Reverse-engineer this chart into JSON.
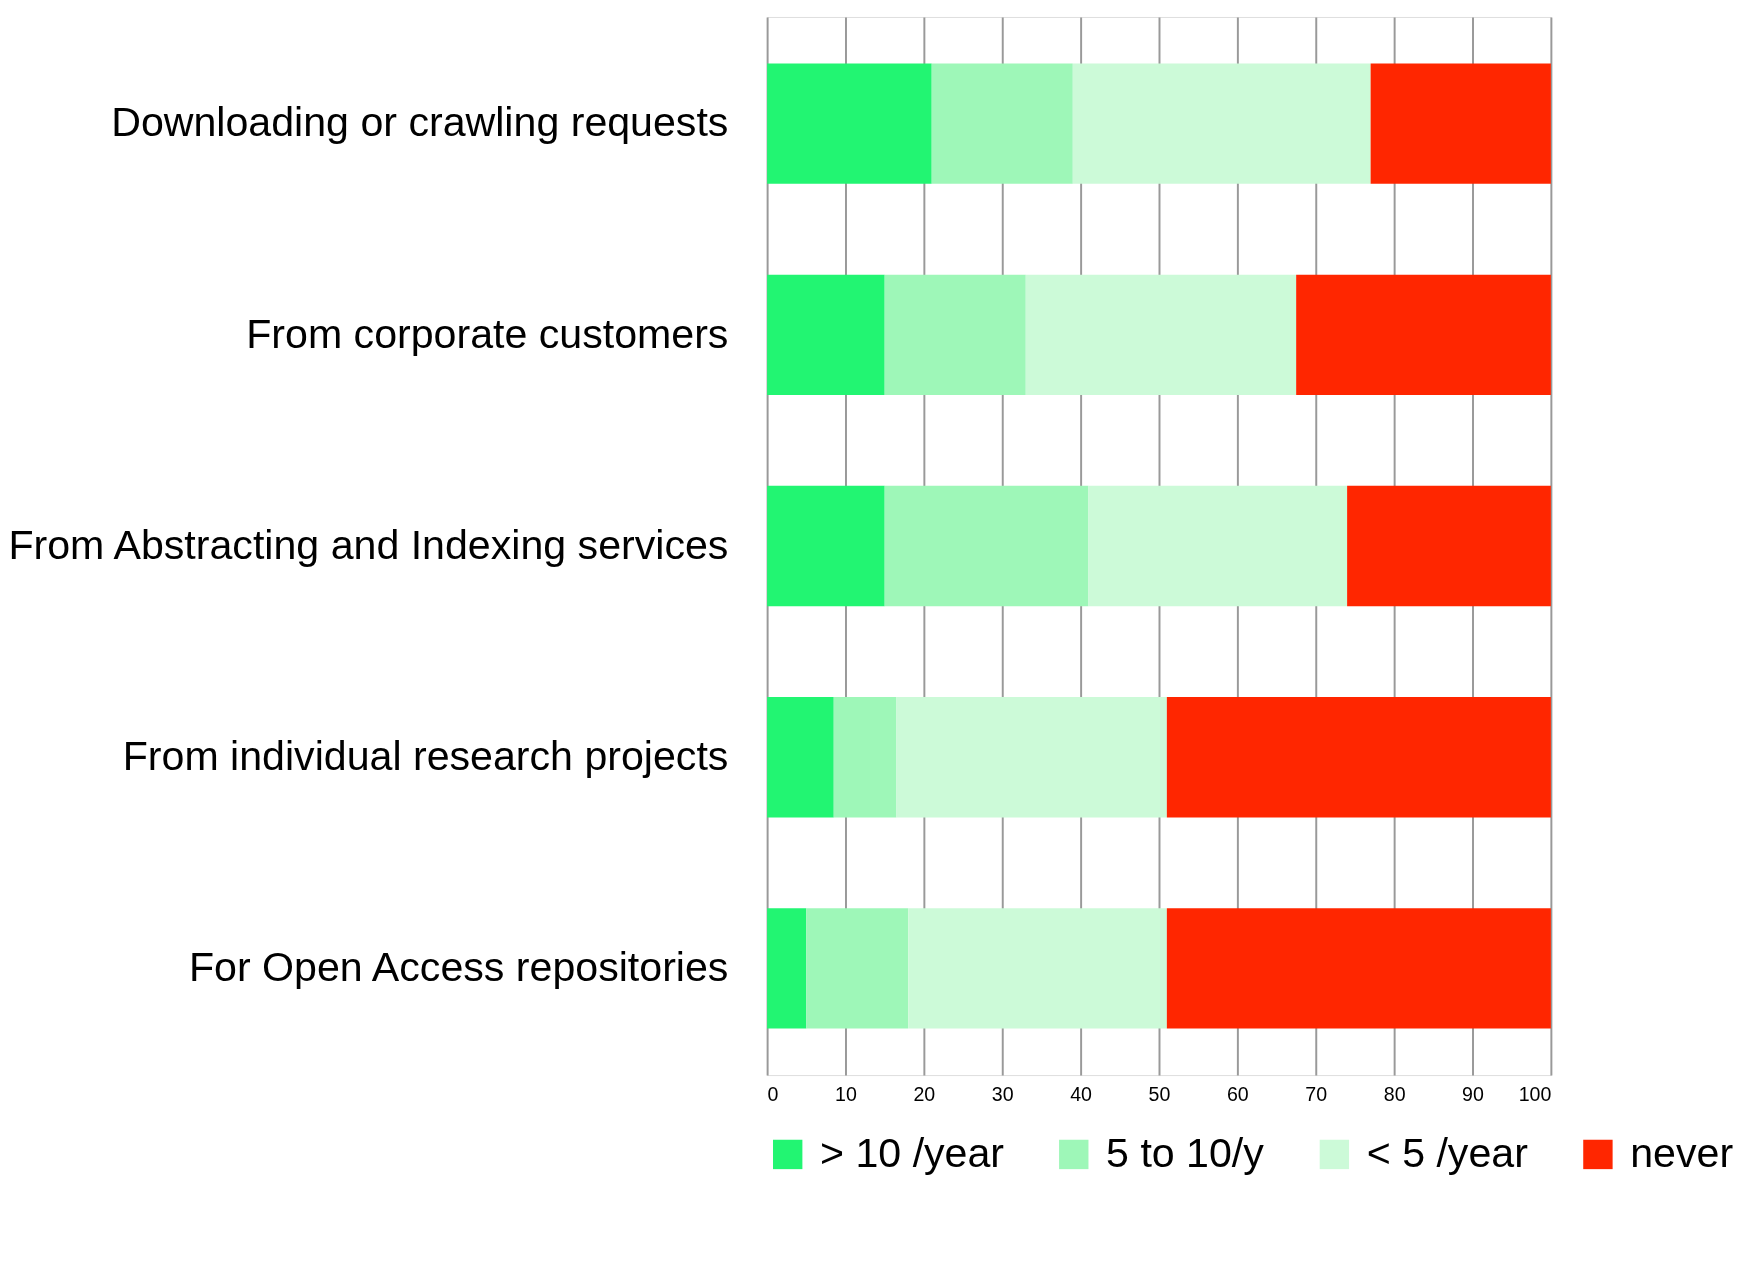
{
  "chart_data": {
    "type": "bar",
    "orientation": "horizontal",
    "stacked": true,
    "categories": [
      "Downloading or crawling requests",
      "From corporate customers",
      "From Abstracting and Indexing services",
      "From individual research projects",
      "For Open Access repositories"
    ],
    "series": [
      {
        "name": "> 10 /year",
        "color": "#22f572",
        "values": [
          21,
          15,
          15,
          8.5,
          5
        ]
      },
      {
        "name": "5 to 10/y",
        "color": "#9ef7b8",
        "values": [
          18,
          18,
          26,
          8,
          13
        ]
      },
      {
        "name": "< 5 /year",
        "color": "#ccfad8",
        "values": [
          38,
          34.5,
          33,
          34.5,
          33
        ]
      },
      {
        "name": "never",
        "color": "#ff2600",
        "values": [
          23,
          32.5,
          26,
          49,
          49
        ]
      }
    ],
    "xlim": [
      0,
      100
    ],
    "xticks": [
      0,
      10,
      20,
      30,
      40,
      50,
      60,
      70,
      80,
      90,
      100
    ],
    "grid": "x",
    "legend": "bottom"
  }
}
